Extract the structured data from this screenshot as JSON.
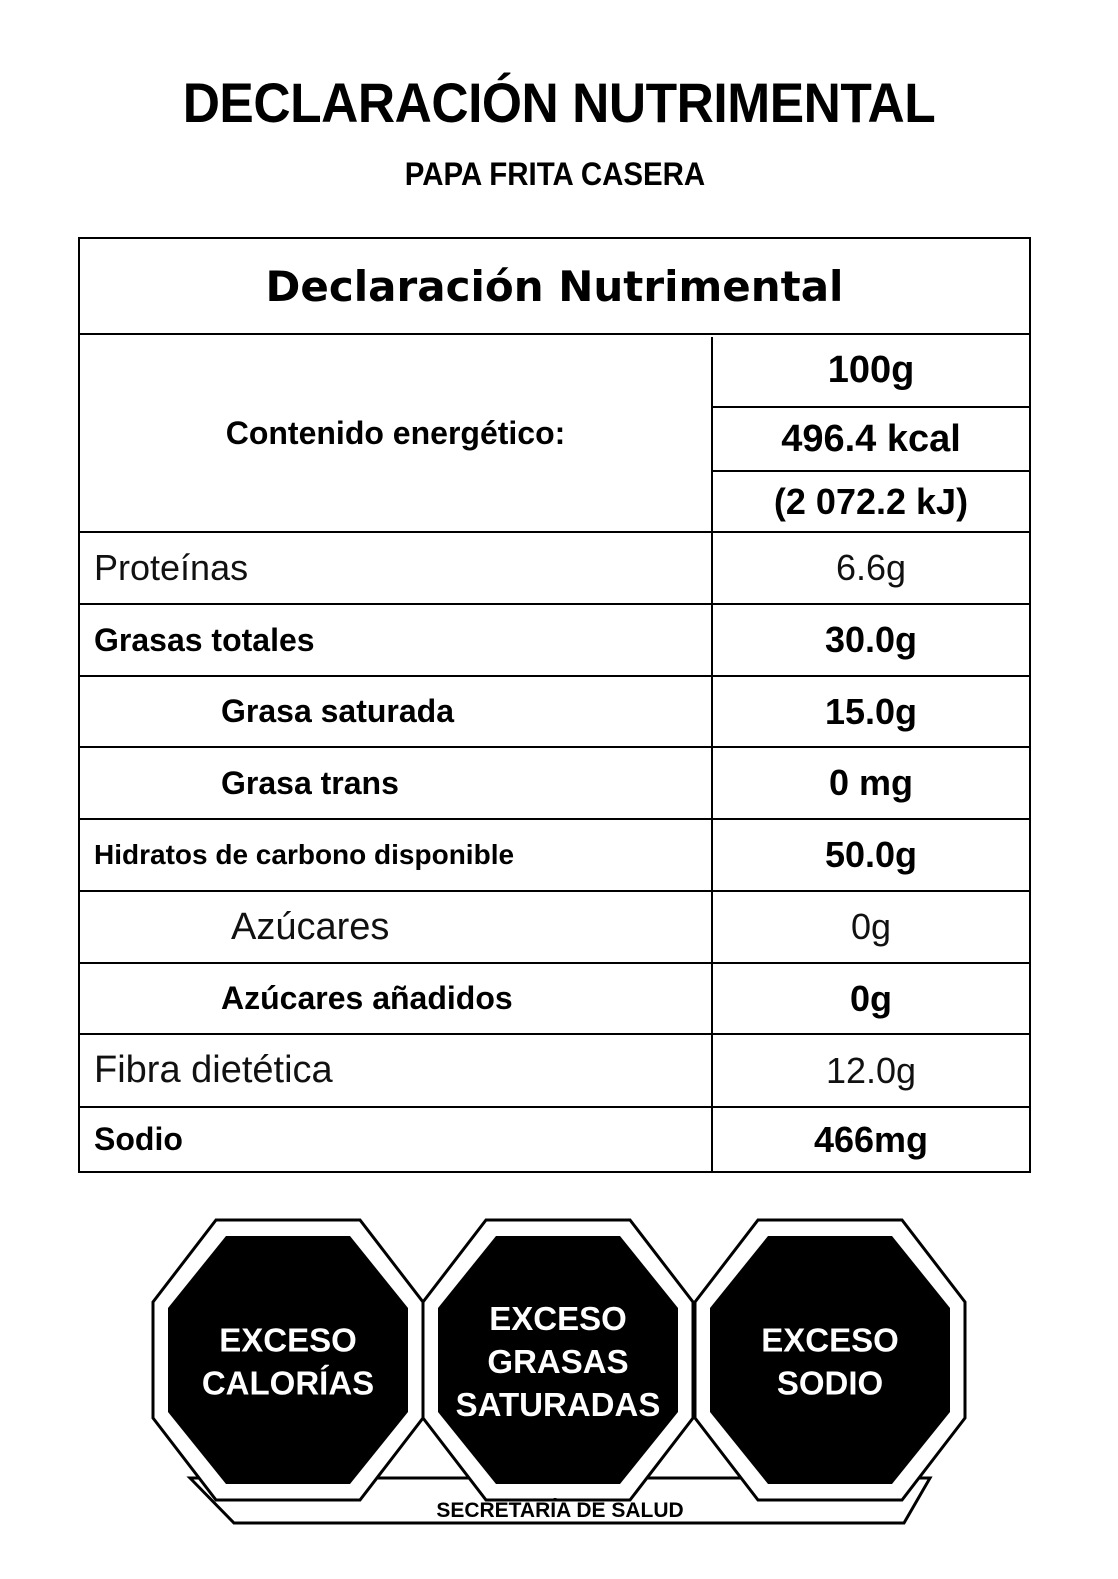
{
  "header": {
    "title": "DECLARACIÓN NUTRIMENTAL",
    "subtitle": "PAPA FRITA CASERA"
  },
  "table": {
    "heading": "Declaración Nutrimental",
    "energy": {
      "label": "Contenido energético:",
      "portion": "100g",
      "kcal": "496.4 kcal",
      "kj": "(2 072.2 kJ)"
    },
    "rows": [
      {
        "label": "Proteínas",
        "value": "6.6g"
      },
      {
        "label": "Grasas totales",
        "value": "30.0g"
      },
      {
        "label": "Grasa saturada",
        "value": "15.0g"
      },
      {
        "label": "Grasa trans",
        "value": "0 mg"
      },
      {
        "label": "Hidratos de carbono disponible",
        "value": "50.0g"
      },
      {
        "label": "Azúcares",
        "value": "0g"
      },
      {
        "label": "Azúcares añadidos",
        "value": "0g"
      },
      {
        "label": "Fibra dietética",
        "value": "12.0g"
      },
      {
        "label": "Sodio",
        "value": "466mg"
      }
    ]
  },
  "seals": {
    "items": [
      {
        "lines": [
          "EXCESO",
          "CALORÍAS"
        ]
      },
      {
        "lines": [
          "EXCESO",
          "GRASAS",
          "SATURADAS"
        ]
      },
      {
        "lines": [
          "EXCESO",
          "SODIO"
        ]
      }
    ],
    "footer": "SECRETARÍA DE SALUD",
    "fill_color": "#000000",
    "text_color": "#ffffff"
  }
}
